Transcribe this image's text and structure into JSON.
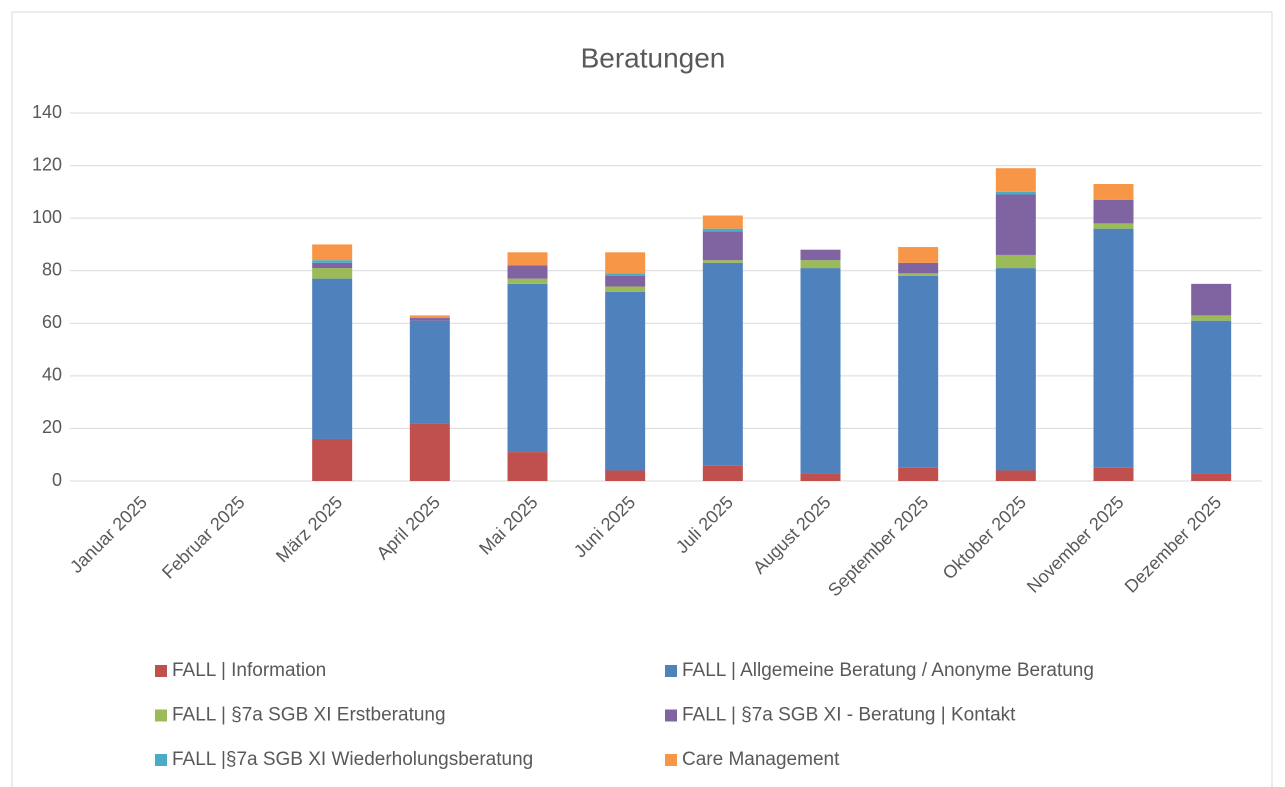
{
  "chart_data": {
    "type": "bar",
    "stacked": true,
    "title": "Beratungen",
    "categories": [
      "Januar 2025",
      "Februar 2025",
      "März 2025",
      "April 2025",
      "Mai 2025",
      "Juni 2025",
      "Juli 2025",
      "August 2025",
      "September 2025",
      "Oktober 2025",
      "November 2025",
      "Dezember 2025"
    ],
    "series": [
      {
        "name": "FALL | Information",
        "color": "#c0504d",
        "values": [
          0,
          0,
          16,
          22,
          11,
          4,
          6,
          3,
          5,
          4,
          5,
          3
        ]
      },
      {
        "name": "FALL | Allgemeine Beratung / Anonyme Beratung",
        "color": "#4f81bd",
        "values": [
          0,
          0,
          61,
          39,
          64,
          68,
          77,
          78,
          73,
          77,
          91,
          58
        ]
      },
      {
        "name": "FALL | §7a SGB XI Erstberatung",
        "color": "#9bbb59",
        "values": [
          0,
          0,
          4,
          0,
          2,
          2,
          1,
          3,
          1,
          5,
          2,
          2
        ]
      },
      {
        "name": "FALL | §7a SGB XI - Beratung | Kontakt",
        "color": "#8064a2",
        "values": [
          0,
          0,
          2,
          1,
          5,
          4,
          11,
          4,
          4,
          23,
          9,
          12
        ]
      },
      {
        "name": "FALL |§7a SGB XI Wiederholungsberatung",
        "color": "#4bacc6",
        "values": [
          0,
          0,
          1,
          0,
          0,
          1,
          1,
          0,
          0,
          1,
          0,
          0
        ]
      },
      {
        "name": "Care Management",
        "color": "#f79646",
        "values": [
          0,
          0,
          6,
          1,
          5,
          8,
          5,
          0,
          6,
          9,
          6,
          0
        ]
      }
    ],
    "ylim": [
      0,
      140
    ],
    "yticks": [
      0,
      20,
      40,
      60,
      80,
      100,
      120,
      140
    ],
    "grid": true,
    "legend": "bottom"
  }
}
